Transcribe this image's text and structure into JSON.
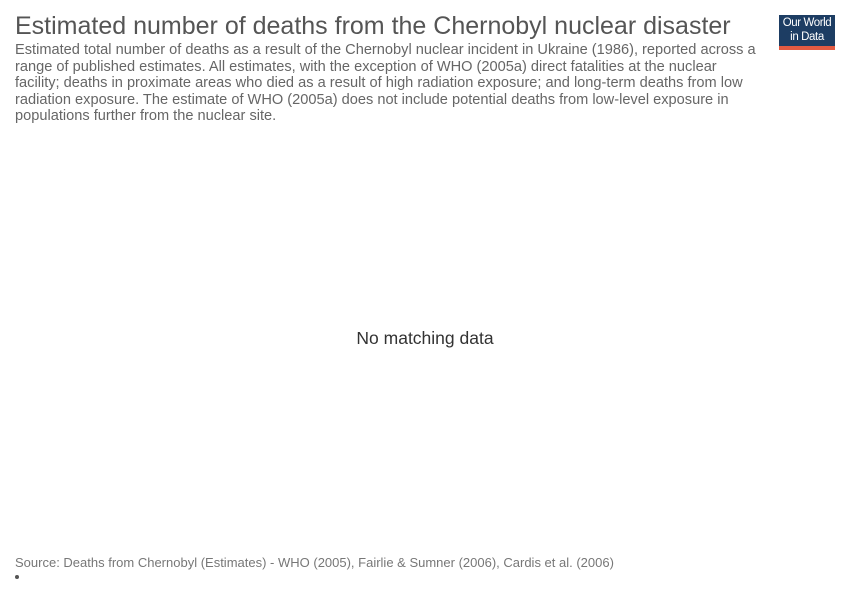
{
  "header": {
    "title": "Estimated number of deaths from the Chernobyl nuclear disaster",
    "subtitle": "Estimated total number of deaths as a result of the Chernobyl nuclear incident in Ukraine (1986), reported across a range of published estimates. All estimates, with the exception of WHO (2005a) direct fatalities at the nuclear facility; deaths in proximate areas who died as a result of high radiation exposure; and long-term deaths from low radiation exposure. The estimate of WHO (2005a) does not include potential deaths from low-level exposure in populations further from the nuclear site."
  },
  "logo": {
    "line1": "Our World",
    "line2": "in Data",
    "background_color": "#1d3d63",
    "accent_color": "#e25a42"
  },
  "chart_data": {
    "type": "bar",
    "title": "Estimated number of deaths from the Chernobyl nuclear disaster",
    "categories": [],
    "values": [],
    "message": "No matching data"
  },
  "footer": {
    "source": "Source: Deaths from Chernobyl (Estimates) - WHO (2005), Fairlie & Sumner (2006), Cardis et al. (2006)"
  }
}
